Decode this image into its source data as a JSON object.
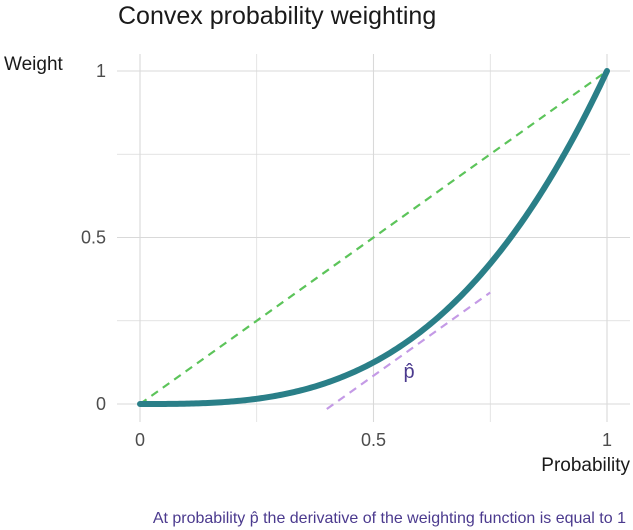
{
  "chart_data": {
    "type": "line",
    "title": "Convex probability weighting",
    "xlabel": "Probability",
    "ylabel": "Weight",
    "xlim": [
      0,
      1
    ],
    "ylim": [
      0,
      1
    ],
    "x_ticks": [
      {
        "value": 0,
        "label": "0"
      },
      {
        "value": 0.5,
        "label": "0.5"
      },
      {
        "value": 1,
        "label": "1"
      }
    ],
    "y_ticks": [
      {
        "value": 0,
        "label": "0"
      },
      {
        "value": 0.5,
        "label": "0.5"
      },
      {
        "value": 1,
        "label": "1"
      }
    ],
    "grid": true,
    "series": [
      {
        "style": "solid",
        "color": "#2a7f88",
        "x": [
          0,
          0.05,
          0.1,
          0.15,
          0.2,
          0.25,
          0.3,
          0.35,
          0.4,
          0.45,
          0.5,
          0.55,
          0.6,
          0.65,
          0.7,
          0.75,
          0.8,
          0.85,
          0.9,
          0.95,
          1
        ],
        "y": [
          0,
          0.0001,
          0.001,
          0.0034,
          0.008,
          0.0156,
          0.027,
          0.0429,
          0.064,
          0.0911,
          0.125,
          0.1664,
          0.216,
          0.2746,
          0.343,
          0.4219,
          0.512,
          0.6141,
          0.729,
          0.8574,
          1
        ]
      },
      {
        "style": "dashed",
        "color": "#5cc45a",
        "x": [
          0,
          1
        ],
        "y": [
          0,
          1
        ]
      },
      {
        "style": "dashed",
        "color": "#c49ae6",
        "x": [
          0.4,
          0.75
        ],
        "y": [
          -0.0151,
          0.3349
        ]
      }
    ],
    "annotations": [
      {
        "text": "p̂",
        "x": 0.577,
        "y": 0.06
      }
    ],
    "caption": "At probability p̂ the derivative of the weighting function is equal to 1"
  }
}
